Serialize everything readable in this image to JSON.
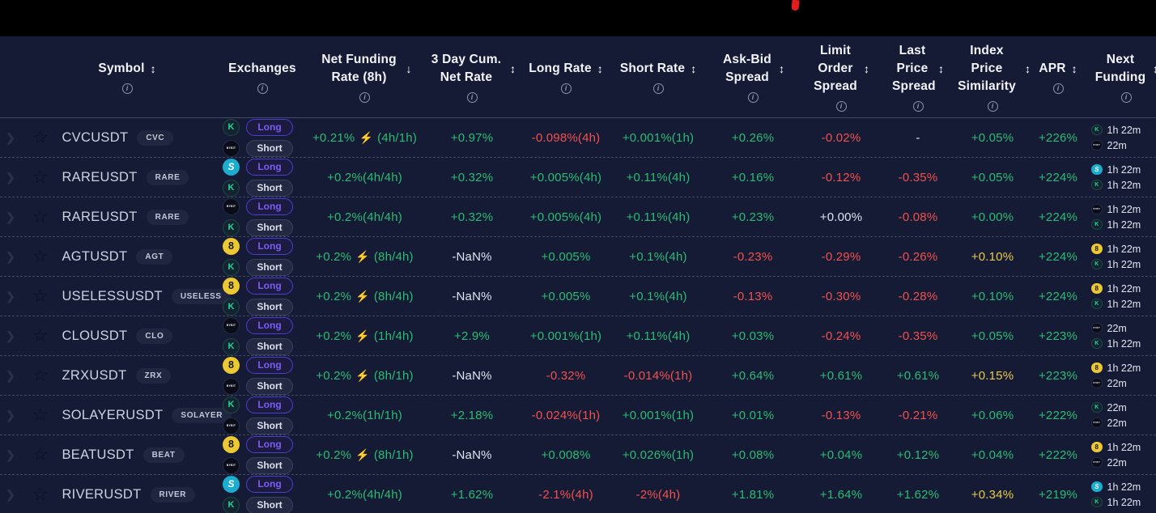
{
  "ui": {
    "long_label": "Long",
    "short_label": "Short",
    "bolt_glyph": "⚡",
    "chevron_glyph": "❯",
    "star_glyph": "☆",
    "info_glyph": "i",
    "colors": {
      "green": "#2bbc72",
      "red": "#f2514e",
      "yellow": "#e9c94b",
      "neutral": "#dfe3ef",
      "long_badge": "#7a5df5",
      "background": "#151b35",
      "topbar": "#000000",
      "topbar_marker": "#e11c1c"
    }
  },
  "columns": [
    {
      "label": "Symbol",
      "sort": "↕"
    },
    {
      "label": "Exchanges",
      "sort": ""
    },
    {
      "label": "Net Funding Rate (8h)",
      "sort": "↓"
    },
    {
      "label": "3 Day Cum. Net Rate",
      "sort": "↕"
    },
    {
      "label": "Long Rate",
      "sort": "↕"
    },
    {
      "label": "Short Rate",
      "sort": "↕"
    },
    {
      "label": "Ask-Bid Spread",
      "sort": "↕"
    },
    {
      "label": "Limit Order Spread",
      "sort": "↕"
    },
    {
      "label": "Last Price Spread",
      "sort": "↕"
    },
    {
      "label": "Index Price Similarity",
      "sort": "↕"
    },
    {
      "label": "APR",
      "sort": "↕"
    },
    {
      "label": "Next Funding",
      "sort": "↕"
    }
  ],
  "exchanges": {
    "kucoin": {
      "glyph": "K",
      "color": "#23d39b"
    },
    "bybit": {
      "glyph": "BYBIT",
      "color": "#0a0c18"
    },
    "tealS": {
      "glyph": "S",
      "color": "#1badcf"
    },
    "yellow8": {
      "glyph": "8",
      "color": "#ecc832"
    }
  },
  "rows": [
    {
      "symbol": "CVCUSDT",
      "base": "CVC",
      "long_ex": "kucoin",
      "short_ex": "bybit",
      "net": {
        "rate": "+0.21%",
        "bolt": true,
        "interval": "(4h/1h)"
      },
      "cum": {
        "text": "+0.97%",
        "color": "green"
      },
      "long_rate": {
        "text": "-0.098%(4h)",
        "color": "red"
      },
      "short_rate": {
        "text": "+0.001%(1h)",
        "color": "green"
      },
      "ask_bid": {
        "text": "+0.26%",
        "color": "green"
      },
      "limit_order": {
        "text": "-0.02%",
        "color": "red"
      },
      "last_price": {
        "text": "-",
        "color": "white"
      },
      "index_sim": {
        "text": "+0.05%",
        "color": "green"
      },
      "apr": {
        "text": "+226%",
        "color": "green"
      },
      "next_funding": [
        {
          "ex": "kucoin",
          "time": "1h 22m"
        },
        {
          "ex": "bybit",
          "time": "22m"
        }
      ]
    },
    {
      "symbol": "RAREUSDT",
      "base": "RARE",
      "long_ex": "tealS",
      "short_ex": "kucoin",
      "net": {
        "rate": "+0.2%",
        "bolt": false,
        "interval": "(4h/4h)"
      },
      "cum": {
        "text": "+0.32%",
        "color": "green"
      },
      "long_rate": {
        "text": "+0.005%(4h)",
        "color": "green"
      },
      "short_rate": {
        "text": "+0.11%(4h)",
        "color": "green"
      },
      "ask_bid": {
        "text": "+0.16%",
        "color": "green"
      },
      "limit_order": {
        "text": "-0.12%",
        "color": "red"
      },
      "last_price": {
        "text": "-0.35%",
        "color": "red"
      },
      "index_sim": {
        "text": "+0.05%",
        "color": "green"
      },
      "apr": {
        "text": "+224%",
        "color": "green"
      },
      "next_funding": [
        {
          "ex": "tealS",
          "time": "1h 22m"
        },
        {
          "ex": "kucoin",
          "time": "1h 22m"
        }
      ]
    },
    {
      "symbol": "RAREUSDT",
      "base": "RARE",
      "long_ex": "bybit",
      "short_ex": "kucoin",
      "net": {
        "rate": "+0.2%",
        "bolt": false,
        "interval": "(4h/4h)"
      },
      "cum": {
        "text": "+0.32%",
        "color": "green"
      },
      "long_rate": {
        "text": "+0.005%(4h)",
        "color": "green"
      },
      "short_rate": {
        "text": "+0.11%(4h)",
        "color": "green"
      },
      "ask_bid": {
        "text": "+0.23%",
        "color": "green"
      },
      "limit_order": {
        "text": "+0.00%",
        "color": "white"
      },
      "last_price": {
        "text": "-0.08%",
        "color": "red"
      },
      "index_sim": {
        "text": "+0.00%",
        "color": "green"
      },
      "apr": {
        "text": "+224%",
        "color": "green"
      },
      "next_funding": [
        {
          "ex": "bybit",
          "time": "1h 22m"
        },
        {
          "ex": "kucoin",
          "time": "1h 22m"
        }
      ]
    },
    {
      "symbol": "AGTUSDT",
      "base": "AGT",
      "long_ex": "yellow8",
      "short_ex": "kucoin",
      "net": {
        "rate": "+0.2%",
        "bolt": true,
        "interval": "(8h/4h)"
      },
      "cum": {
        "text": "-NaN%",
        "color": "white"
      },
      "long_rate": {
        "text": "+0.005%",
        "color": "green"
      },
      "short_rate": {
        "text": "+0.1%(4h)",
        "color": "green"
      },
      "ask_bid": {
        "text": "-0.23%",
        "color": "red"
      },
      "limit_order": {
        "text": "-0.29%",
        "color": "red"
      },
      "last_price": {
        "text": "-0.26%",
        "color": "red"
      },
      "index_sim": {
        "text": "+0.10%",
        "color": "yellow"
      },
      "apr": {
        "text": "+224%",
        "color": "green"
      },
      "next_funding": [
        {
          "ex": "yellow8",
          "time": "1h 22m"
        },
        {
          "ex": "kucoin",
          "time": "1h 22m"
        }
      ]
    },
    {
      "symbol": "USELESSUSDT",
      "base": "USELESS",
      "long_ex": "yellow8",
      "short_ex": "kucoin",
      "net": {
        "rate": "+0.2%",
        "bolt": true,
        "interval": "(8h/4h)"
      },
      "cum": {
        "text": "-NaN%",
        "color": "white"
      },
      "long_rate": {
        "text": "+0.005%",
        "color": "green"
      },
      "short_rate": {
        "text": "+0.1%(4h)",
        "color": "green"
      },
      "ask_bid": {
        "text": "-0.13%",
        "color": "red"
      },
      "limit_order": {
        "text": "-0.30%",
        "color": "red"
      },
      "last_price": {
        "text": "-0.28%",
        "color": "red"
      },
      "index_sim": {
        "text": "+0.10%",
        "color": "green"
      },
      "apr": {
        "text": "+224%",
        "color": "green"
      },
      "next_funding": [
        {
          "ex": "yellow8",
          "time": "1h 22m"
        },
        {
          "ex": "kucoin",
          "time": "1h 22m"
        }
      ]
    },
    {
      "symbol": "CLOUSDT",
      "base": "CLO",
      "long_ex": "bybit",
      "short_ex": "kucoin",
      "net": {
        "rate": "+0.2%",
        "bolt": true,
        "interval": "(1h/4h)"
      },
      "cum": {
        "text": "+2.9%",
        "color": "green"
      },
      "long_rate": {
        "text": "+0.001%(1h)",
        "color": "green"
      },
      "short_rate": {
        "text": "+0.11%(4h)",
        "color": "green"
      },
      "ask_bid": {
        "text": "+0.03%",
        "color": "green"
      },
      "limit_order": {
        "text": "-0.24%",
        "color": "red"
      },
      "last_price": {
        "text": "-0.35%",
        "color": "red"
      },
      "index_sim": {
        "text": "+0.05%",
        "color": "green"
      },
      "apr": {
        "text": "+223%",
        "color": "green"
      },
      "next_funding": [
        {
          "ex": "bybit",
          "time": "22m"
        },
        {
          "ex": "kucoin",
          "time": "1h 22m"
        }
      ]
    },
    {
      "symbol": "ZRXUSDT",
      "base": "ZRX",
      "long_ex": "yellow8",
      "short_ex": "bybit",
      "net": {
        "rate": "+0.2%",
        "bolt": true,
        "interval": "(8h/1h)"
      },
      "cum": {
        "text": "-NaN%",
        "color": "white"
      },
      "long_rate": {
        "text": "-0.32%",
        "color": "red"
      },
      "short_rate": {
        "text": "-0.014%(1h)",
        "color": "red"
      },
      "ask_bid": {
        "text": "+0.64%",
        "color": "green"
      },
      "limit_order": {
        "text": "+0.61%",
        "color": "green"
      },
      "last_price": {
        "text": "+0.61%",
        "color": "green"
      },
      "index_sim": {
        "text": "+0.15%",
        "color": "yellow"
      },
      "apr": {
        "text": "+223%",
        "color": "green"
      },
      "next_funding": [
        {
          "ex": "yellow8",
          "time": "1h 22m"
        },
        {
          "ex": "bybit",
          "time": "22m"
        }
      ]
    },
    {
      "symbol": "SOLAYERUSDT",
      "base": "SOLAYER",
      "long_ex": "kucoin",
      "short_ex": "bybit",
      "net": {
        "rate": "+0.2%",
        "bolt": false,
        "interval": "(1h/1h)"
      },
      "cum": {
        "text": "+2.18%",
        "color": "green"
      },
      "long_rate": {
        "text": "-0.024%(1h)",
        "color": "red"
      },
      "short_rate": {
        "text": "+0.001%(1h)",
        "color": "green"
      },
      "ask_bid": {
        "text": "+0.01%",
        "color": "green"
      },
      "limit_order": {
        "text": "-0.13%",
        "color": "red"
      },
      "last_price": {
        "text": "-0.21%",
        "color": "red"
      },
      "index_sim": {
        "text": "+0.06%",
        "color": "green"
      },
      "apr": {
        "text": "+222%",
        "color": "green"
      },
      "next_funding": [
        {
          "ex": "kucoin",
          "time": "22m"
        },
        {
          "ex": "bybit",
          "time": "22m"
        }
      ]
    },
    {
      "symbol": "BEATUSDT",
      "base": "BEAT",
      "long_ex": "yellow8",
      "short_ex": "bybit",
      "net": {
        "rate": "+0.2%",
        "bolt": true,
        "interval": "(8h/1h)"
      },
      "cum": {
        "text": "-NaN%",
        "color": "white"
      },
      "long_rate": {
        "text": "+0.008%",
        "color": "green"
      },
      "short_rate": {
        "text": "+0.026%(1h)",
        "color": "green"
      },
      "ask_bid": {
        "text": "+0.08%",
        "color": "green"
      },
      "limit_order": {
        "text": "+0.04%",
        "color": "green"
      },
      "last_price": {
        "text": "+0.12%",
        "color": "green"
      },
      "index_sim": {
        "text": "+0.04%",
        "color": "green"
      },
      "apr": {
        "text": "+222%",
        "color": "green"
      },
      "next_funding": [
        {
          "ex": "yellow8",
          "time": "1h 22m"
        },
        {
          "ex": "bybit",
          "time": "22m"
        }
      ]
    },
    {
      "symbol": "RIVERUSDT",
      "base": "RIVER",
      "long_ex": "tealS",
      "short_ex": "kucoin",
      "net": {
        "rate": "+0.2%",
        "bolt": false,
        "interval": "(4h/4h)"
      },
      "cum": {
        "text": "+1.62%",
        "color": "green"
      },
      "long_rate": {
        "text": "-2.1%(4h)",
        "color": "red"
      },
      "short_rate": {
        "text": "-2%(4h)",
        "color": "red"
      },
      "ask_bid": {
        "text": "+1.81%",
        "color": "green"
      },
      "limit_order": {
        "text": "+1.64%",
        "color": "green"
      },
      "last_price": {
        "text": "+1.62%",
        "color": "green"
      },
      "index_sim": {
        "text": "+0.34%",
        "color": "yellow"
      },
      "apr": {
        "text": "+219%",
        "color": "green"
      },
      "next_funding": [
        {
          "ex": "tealS",
          "time": "1h 22m"
        },
        {
          "ex": "kucoin",
          "time": "1h 22m"
        }
      ]
    }
  ]
}
